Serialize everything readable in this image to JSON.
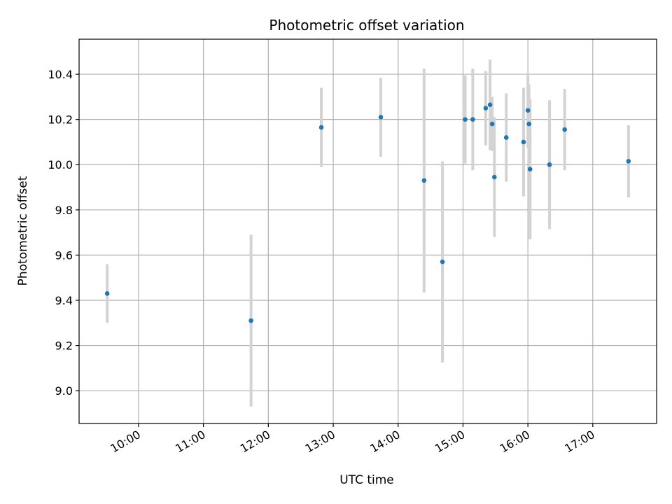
{
  "chart_data": {
    "type": "scatter",
    "title": "Photometric offset variation",
    "xlabel": "UTC time",
    "ylabel": "Photometric offset",
    "grid": true,
    "xlim": [
      "09:05",
      "17:59"
    ],
    "ylim": [
      8.855,
      10.555
    ],
    "x_ticks": [
      "10:00",
      "11:00",
      "12:00",
      "13:00",
      "14:00",
      "15:00",
      "16:00",
      "17:00"
    ],
    "y_ticks": [
      "9.0",
      "9.2",
      "9.4",
      "9.6",
      "9.8",
      "10.0",
      "10.2",
      "10.4"
    ],
    "series": [
      {
        "marker_color": "#1f77b4",
        "errorbar_color": "#d3d3d3",
        "points": [
          {
            "x": "09:31",
            "y": 9.43,
            "err": 0.13
          },
          {
            "x": "11:44",
            "y": 9.31,
            "err": 0.38
          },
          {
            "x": "12:49",
            "y": 10.165,
            "err": 0.175
          },
          {
            "x": "13:44",
            "y": 10.21,
            "err": 0.175
          },
          {
            "x": "14:24",
            "y": 9.93,
            "err": 0.495
          },
          {
            "x": "14:41",
            "y": 9.57,
            "err": 0.445
          },
          {
            "x": "15:02",
            "y": 10.2,
            "err": 0.195
          },
          {
            "x": "15:09",
            "y": 10.2,
            "err": 0.225
          },
          {
            "x": "15:21",
            "y": 10.25,
            "err": 0.165
          },
          {
            "x": "15:25",
            "y": 10.265,
            "err": 0.2
          },
          {
            "x": "15:27",
            "y": 10.18,
            "err": 0.12
          },
          {
            "x": "15:29",
            "y": 9.945,
            "err": 0.265
          },
          {
            "x": "15:40",
            "y": 10.12,
            "err": 0.195
          },
          {
            "x": "15:56",
            "y": 10.1,
            "err": 0.24
          },
          {
            "x": "16:00",
            "y": 10.24,
            "err": 0.165
          },
          {
            "x": "16:01",
            "y": 10.18,
            "err": 0.175
          },
          {
            "x": "16:02",
            "y": 9.98,
            "err": 0.31
          },
          {
            "x": "16:20",
            "y": 10.0,
            "err": 0.285
          },
          {
            "x": "16:34",
            "y": 10.155,
            "err": 0.18
          },
          {
            "x": "17:33",
            "y": 10.015,
            "err": 0.16
          }
        ]
      }
    ]
  }
}
